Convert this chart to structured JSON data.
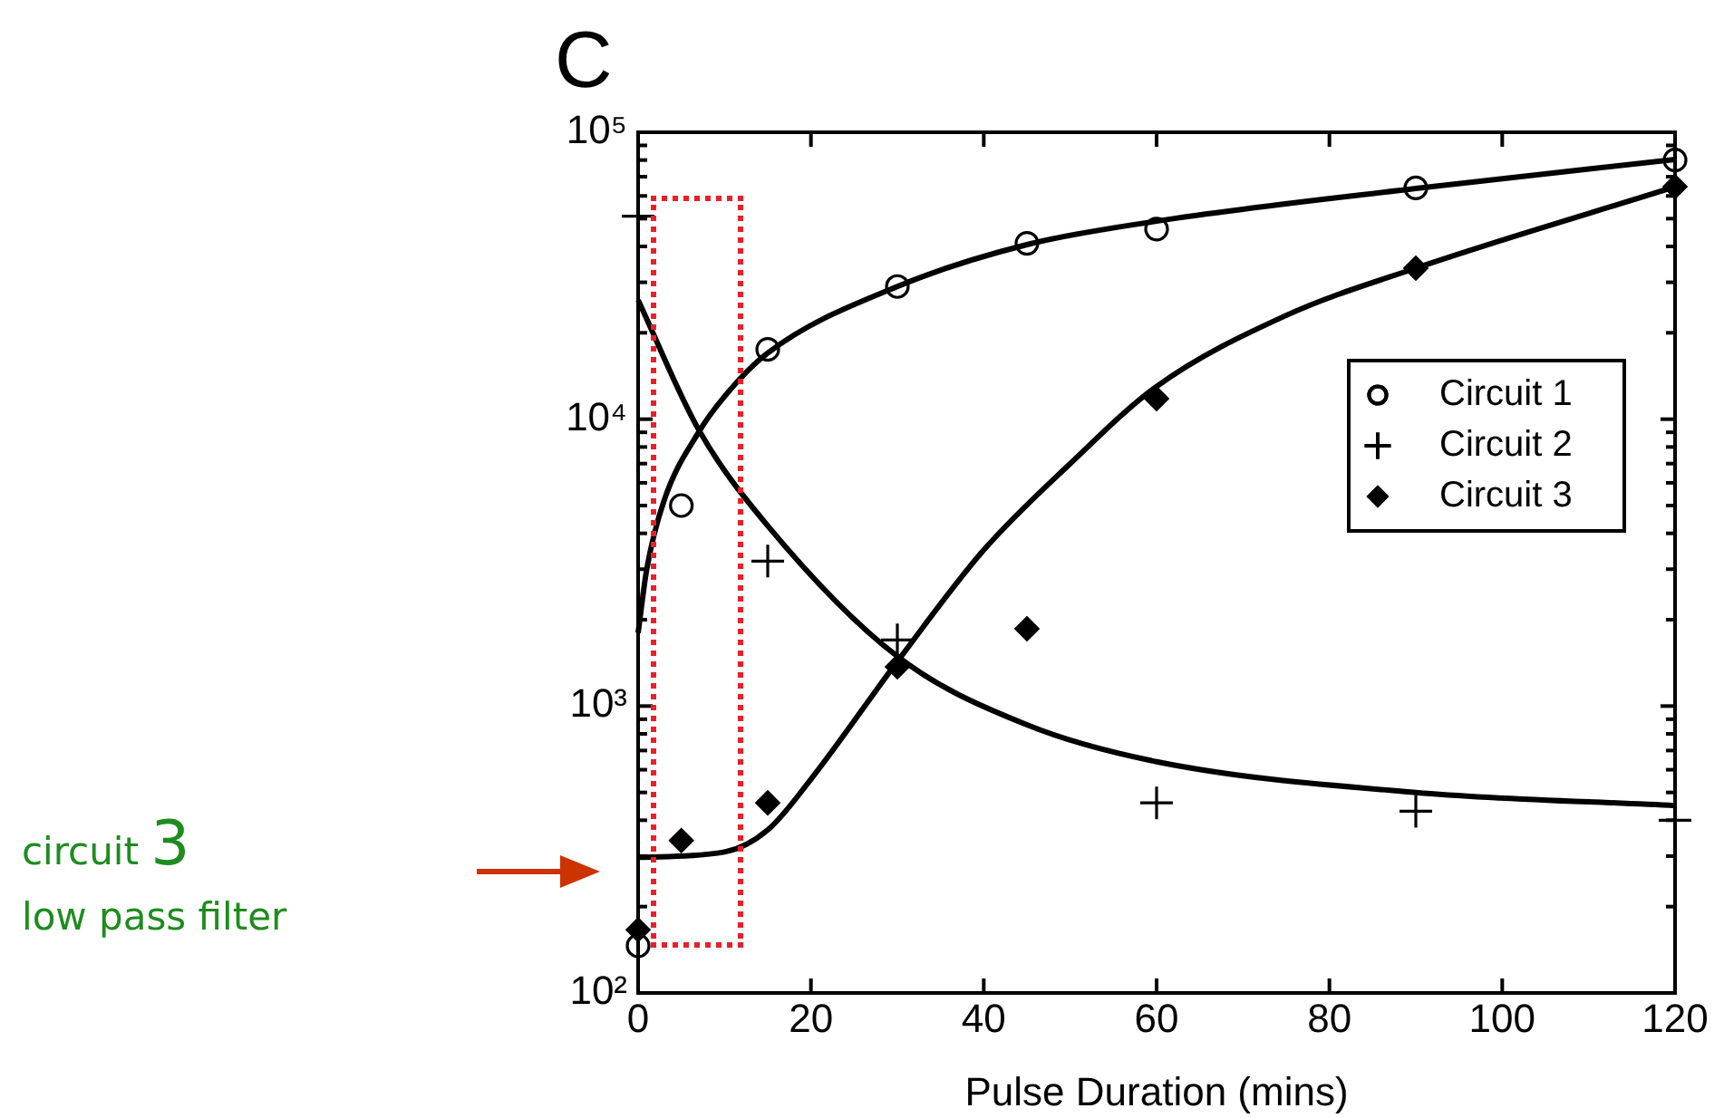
{
  "chart_data": {
    "type": "scatter",
    "title": "C",
    "xlabel": "Pulse Duration (mins)",
    "xlim": [
      0,
      120
    ],
    "xticks": [
      0,
      20,
      40,
      60,
      80,
      100,
      120
    ],
    "ylim": [
      100,
      100000
    ],
    "log": "y",
    "yticks": [
      {
        "value": 100,
        "label": "10²"
      },
      {
        "value": 200,
        "label": null
      },
      {
        "value": 300,
        "label": null
      },
      {
        "value": 400,
        "label": null
      },
      {
        "value": 500,
        "label": null
      },
      {
        "value": 600,
        "label": null
      },
      {
        "value": 700,
        "label": null
      },
      {
        "value": 800,
        "label": null
      },
      {
        "value": 900,
        "label": null
      },
      {
        "value": 1000,
        "label": "10³"
      },
      {
        "value": 2000,
        "label": null
      },
      {
        "value": 3000,
        "label": null
      },
      {
        "value": 4000,
        "label": null
      },
      {
        "value": 5000,
        "label": null
      },
      {
        "value": 6000,
        "label": null
      },
      {
        "value": 7000,
        "label": null
      },
      {
        "value": 8000,
        "label": null
      },
      {
        "value": 9000,
        "label": null
      },
      {
        "value": 10000,
        "label": "10⁴"
      },
      {
        "value": 20000,
        "label": null
      },
      {
        "value": 30000,
        "label": null
      },
      {
        "value": 40000,
        "label": null
      },
      {
        "value": 50000,
        "label": null
      },
      {
        "value": 60000,
        "label": null
      },
      {
        "value": 70000,
        "label": null
      },
      {
        "value": 80000,
        "label": null
      },
      {
        "value": 90000,
        "label": null
      },
      {
        "value": 100000,
        "label": "10⁵"
      }
    ],
    "grid": false,
    "legend": "right",
    "series": [
      {
        "name": "Circuit 1",
        "type": "scatter",
        "marker": "circle",
        "color": "#000000",
        "x": [
          0,
          5,
          15,
          30,
          45,
          60,
          90,
          120
        ],
        "values": [
          146,
          5000,
          17500,
          29000,
          41000,
          46000,
          64000,
          80000
        ]
      },
      {
        "name": "Circuit 2",
        "type": "scatter",
        "marker": "cross",
        "color": "#000000",
        "x": [
          0,
          15,
          30,
          60,
          90,
          120
        ],
        "values": [
          51000,
          3200,
          1700,
          460,
          430,
          400
        ]
      },
      {
        "name": "Circuit 3",
        "type": "scatter",
        "marker": "diamond",
        "color": "#000000",
        "x": [
          0,
          5,
          15,
          30,
          45,
          60,
          90,
          120
        ],
        "values": [
          166,
          340,
          460,
          1370,
          1860,
          11800,
          33600,
          64600
        ]
      },
      {
        "type": "line",
        "marker": "none",
        "color": "#000000",
        "x": [
          0,
          1,
          3,
          7,
          10,
          15,
          30,
          45,
          60,
          90,
          120
        ],
        "values": [
          1800,
          3000,
          5200,
          9000,
          12000,
          17000,
          29000,
          40600,
          49000,
          63700,
          80400
        ]
      },
      {
        "type": "line",
        "marker": "none",
        "color": "#000000",
        "x": [
          0,
          7,
          15,
          30,
          45,
          60,
          90,
          120
        ],
        "values": [
          26000,
          9200,
          4250,
          1490,
          860,
          640,
          500,
          450
        ]
      },
      {
        "type": "line",
        "marker": "none",
        "color": "#000000",
        "x": [
          0,
          10,
          15,
          20,
          30,
          40,
          50,
          60,
          75,
          90,
          120
        ],
        "values": [
          297,
          310,
          370,
          556,
          1430,
          3500,
          7000,
          13000,
          23000,
          33600,
          64600
        ]
      }
    ],
    "annotations": [
      "circuit 3",
      "low pass filter"
    ]
  }
}
